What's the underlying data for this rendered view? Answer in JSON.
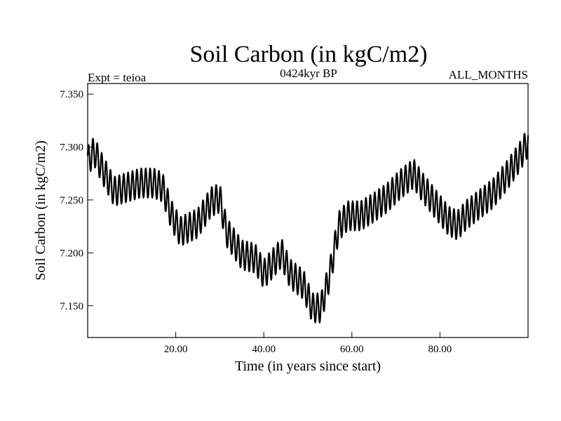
{
  "chart_data": {
    "type": "line",
    "title": "Soil Carbon (in kgC/m2)",
    "subtitle": "0424kyr BP",
    "left_label": "Expt = teioa",
    "right_label": "ALL_MONTHS",
    "xlabel": "Time (in years since start)",
    "ylabel": "Soil Carbon (in kgC/m2)",
    "xlim": [
      0,
      100
    ],
    "ylim": [
      7.12,
      7.36
    ],
    "x_ticks": [
      20,
      40,
      60,
      80
    ],
    "x_tick_labels": [
      "20.00",
      "40.00",
      "60.00",
      "80.00"
    ],
    "y_ticks": [
      7.15,
      7.2,
      7.25,
      7.3,
      7.35
    ],
    "y_tick_labels": [
      "7.150",
      "7.200",
      "7.250",
      "7.300",
      "7.350"
    ],
    "grid": false,
    "line_color": "#000000",
    "seasonal_amplitude": 0.014,
    "samples_per_year": 12,
    "series": [
      {
        "name": "Soil Carbon",
        "trend_x": [
          0,
          1.5,
          3,
          6,
          9,
          12,
          15,
          17,
          19,
          21,
          25,
          28,
          30,
          31.5,
          35,
          38,
          40,
          42,
          44,
          46,
          49,
          51,
          53,
          55,
          57,
          59,
          62,
          65,
          68,
          71,
          74,
          76,
          79,
          82,
          84,
          86,
          89,
          92,
          95,
          98,
          100
        ],
        "trend_y": [
          7.287,
          7.296,
          7.282,
          7.258,
          7.262,
          7.266,
          7.266,
          7.262,
          7.236,
          7.22,
          7.228,
          7.248,
          7.252,
          7.22,
          7.198,
          7.195,
          7.18,
          7.19,
          7.2,
          7.18,
          7.17,
          7.148,
          7.148,
          7.18,
          7.225,
          7.235,
          7.235,
          7.243,
          7.252,
          7.265,
          7.275,
          7.262,
          7.246,
          7.23,
          7.226,
          7.236,
          7.246,
          7.256,
          7.272,
          7.29,
          7.305
        ]
      }
    ]
  }
}
